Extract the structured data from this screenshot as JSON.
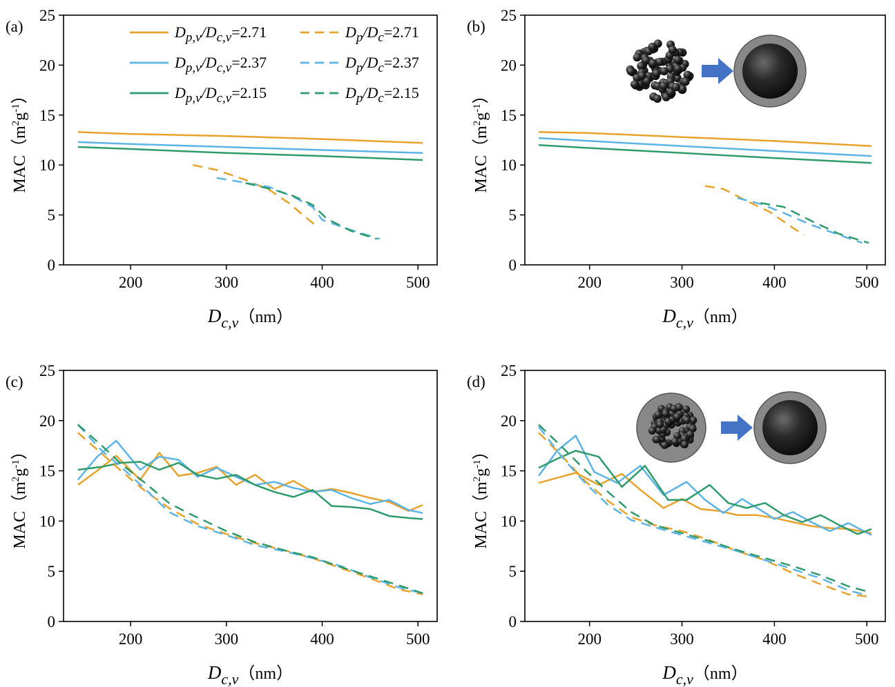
{
  "figure": {
    "xlabel_main": "D",
    "xlabel_sub": "c,v",
    "xlabel_unit": "（nm）",
    "ylabel_main": "MAC（m",
    "ylabel_sup1": "2",
    "ylabel_mid": "g",
    "ylabel_sup2": "-1",
    "ylabel_end": "）"
  },
  "legend": [
    {
      "main": "D",
      "sub1": "p,v",
      "mid": "/D",
      "sub2": "c,v",
      "value": "=2.71",
      "color": "#E8A22B",
      "dash": false
    },
    {
      "main": "D",
      "sub1": "p",
      "mid": "/D",
      "sub2": "c",
      "value": "=2.71",
      "color": "#E8A22B",
      "dash": true
    },
    {
      "main": "D",
      "sub1": "p,v",
      "mid": "/D",
      "sub2": "c,v",
      "value": "=2.37",
      "color": "#5BB4E5",
      "dash": false
    },
    {
      "main": "D",
      "sub1": "p",
      "mid": "/D",
      "sub2": "c",
      "value": "=2.37",
      "color": "#5BB4E5",
      "dash": true
    },
    {
      "main": "D",
      "sub1": "p,v",
      "mid": "/D",
      "sub2": "c,v",
      "value": "=2.15",
      "color": "#2E9B6B",
      "dash": false
    },
    {
      "main": "D",
      "sub1": "p",
      "mid": "/D",
      "sub2": "c",
      "value": "=2.15",
      "color": "#2E9B6B",
      "dash": true
    }
  ],
  "chart_data": [
    {
      "panel": "(a)",
      "type": "line",
      "xlim": [
        130,
        520
      ],
      "ylim": [
        0,
        25
      ],
      "xticks": [
        200,
        300,
        400,
        500
      ],
      "yticks": [
        0,
        5,
        10,
        15,
        20,
        25
      ],
      "grid": false,
      "legend_position": "top",
      "series": [
        {
          "color": "#E8A22B",
          "dash": false,
          "x": [
            145,
            200,
            300,
            400,
            505
          ],
          "y": [
            13.3,
            13.1,
            12.9,
            12.6,
            12.2
          ]
        },
        {
          "color": "#5BB4E5",
          "dash": false,
          "x": [
            145,
            200,
            300,
            400,
            505
          ],
          "y": [
            12.3,
            12.1,
            11.8,
            11.5,
            11.2
          ]
        },
        {
          "color": "#2E9B6B",
          "dash": false,
          "x": [
            145,
            200,
            300,
            400,
            505
          ],
          "y": [
            11.8,
            11.6,
            11.2,
            10.9,
            10.5
          ]
        },
        {
          "color": "#E8A22B",
          "dash": true,
          "x": [
            265,
            290,
            320,
            345,
            365,
            380,
            395
          ],
          "y": [
            10.0,
            9.5,
            8.5,
            7.5,
            6.2,
            5.0,
            3.8
          ]
        },
        {
          "color": "#5BB4E5",
          "dash": true,
          "x": [
            290,
            315,
            345,
            370,
            390,
            400,
            430,
            460
          ],
          "y": [
            8.7,
            8.3,
            7.8,
            6.8,
            5.8,
            4.5,
            3.5,
            2.6
          ]
        },
        {
          "color": "#2E9B6B",
          "dash": true,
          "x": [
            320,
            350,
            370,
            390,
            405,
            430,
            457
          ],
          "y": [
            8.2,
            7.5,
            6.9,
            6.0,
            4.6,
            3.4,
            2.6
          ]
        }
      ]
    },
    {
      "panel": "(b)",
      "type": "line",
      "xlim": [
        130,
        520
      ],
      "ylim": [
        0,
        25
      ],
      "xticks": [
        200,
        300,
        400,
        500
      ],
      "yticks": [
        0,
        5,
        10,
        15,
        20,
        25
      ],
      "grid": false,
      "series": [
        {
          "color": "#E8A22B",
          "dash": false,
          "x": [
            145,
            200,
            300,
            400,
            505
          ],
          "y": [
            13.3,
            13.2,
            12.8,
            12.4,
            11.9
          ]
        },
        {
          "color": "#5BB4E5",
          "dash": false,
          "x": [
            145,
            200,
            300,
            400,
            505
          ],
          "y": [
            12.7,
            12.4,
            11.9,
            11.4,
            10.9
          ]
        },
        {
          "color": "#2E9B6B",
          "dash": false,
          "x": [
            145,
            200,
            300,
            400,
            505
          ],
          "y": [
            12.0,
            11.7,
            11.2,
            10.7,
            10.2
          ]
        },
        {
          "color": "#E8A22B",
          "dash": true,
          "x": [
            325,
            345,
            370,
            395,
            420,
            432
          ],
          "y": [
            7.9,
            7.6,
            6.4,
            5.3,
            3.7,
            3.0
          ]
        },
        {
          "color": "#5BB4E5",
          "dash": true,
          "x": [
            360,
            385,
            410,
            440,
            470,
            495
          ],
          "y": [
            6.7,
            6.1,
            5.2,
            4.0,
            3.0,
            2.2
          ]
        },
        {
          "color": "#2E9B6B",
          "dash": true,
          "x": [
            385,
            410,
            440,
            470,
            502
          ],
          "y": [
            6.2,
            5.8,
            4.4,
            3.1,
            2.2
          ]
        }
      ]
    },
    {
      "panel": "(c)",
      "type": "line",
      "xlim": [
        130,
        520
      ],
      "ylim": [
        0,
        25
      ],
      "xticks": [
        200,
        300,
        400,
        500
      ],
      "yticks": [
        0,
        5,
        10,
        15,
        20,
        25
      ],
      "grid": false,
      "series": [
        {
          "color": "#E8A22B",
          "dash": false,
          "x": [
            145,
            165,
            185,
            210,
            230,
            250,
            270,
            290,
            310,
            330,
            350,
            370,
            390,
            410,
            430,
            450,
            470,
            490,
            505
          ],
          "y": [
            13.6,
            15.0,
            16.5,
            14.1,
            16.8,
            14.5,
            14.8,
            15.4,
            13.6,
            14.6,
            13.2,
            14.0,
            12.9,
            13.2,
            12.8,
            12.3,
            11.9,
            11.0,
            11.6
          ]
        },
        {
          "color": "#5BB4E5",
          "dash": false,
          "x": [
            145,
            165,
            185,
            210,
            230,
            250,
            270,
            290,
            310,
            330,
            350,
            370,
            390,
            410,
            430,
            450,
            470,
            490,
            505
          ],
          "y": [
            14.1,
            16.4,
            18.0,
            15.1,
            16.4,
            16.1,
            14.4,
            15.3,
            14.4,
            13.6,
            13.9,
            13.3,
            12.9,
            13.1,
            12.3,
            11.7,
            12.1,
            11.1,
            10.8
          ]
        },
        {
          "color": "#2E9B6B",
          "dash": false,
          "x": [
            145,
            170,
            190,
            210,
            230,
            250,
            270,
            290,
            310,
            330,
            350,
            370,
            390,
            410,
            430,
            450,
            470,
            490,
            505
          ],
          "y": [
            15.1,
            15.4,
            15.8,
            15.9,
            15.1,
            15.8,
            14.6,
            14.2,
            14.6,
            13.6,
            12.9,
            12.4,
            13.1,
            11.5,
            11.4,
            11.2,
            10.5,
            10.3,
            10.2
          ]
        },
        {
          "color": "#E8A22B",
          "dash": true,
          "x": [
            145,
            170,
            190,
            215,
            240,
            270,
            300,
            330,
            360,
            390,
            420,
            450,
            480,
            505
          ],
          "y": [
            18.8,
            16.7,
            15.0,
            13.0,
            11.3,
            9.7,
            8.7,
            7.8,
            7.1,
            6.3,
            5.3,
            4.3,
            3.2,
            2.7
          ]
        },
        {
          "color": "#5BB4E5",
          "dash": true,
          "x": [
            145,
            170,
            190,
            215,
            240,
            270,
            300,
            330,
            360,
            390,
            420,
            450,
            480,
            505
          ],
          "y": [
            19.6,
            17.0,
            15.4,
            13.2,
            10.9,
            9.5,
            8.6,
            7.6,
            7.0,
            6.3,
            5.5,
            4.4,
            3.4,
            2.8
          ]
        },
        {
          "color": "#2E9B6B",
          "dash": true,
          "x": [
            145,
            170,
            190,
            215,
            240,
            260,
            300,
            330,
            360,
            390,
            420,
            450,
            480,
            505
          ],
          "y": [
            19.6,
            17.5,
            15.7,
            13.8,
            11.8,
            10.8,
            9.0,
            7.9,
            7.1,
            6.4,
            5.4,
            4.5,
            3.6,
            2.8
          ]
        }
      ]
    },
    {
      "panel": "(d)",
      "type": "line",
      "xlim": [
        130,
        520
      ],
      "ylim": [
        0,
        25
      ],
      "xticks": [
        200,
        300,
        400,
        500
      ],
      "yticks": [
        0,
        5,
        10,
        15,
        20,
        25
      ],
      "grid": false,
      "series": [
        {
          "color": "#E8A22B",
          "dash": false,
          "x": [
            145,
            165,
            185,
            210,
            235,
            255,
            280,
            300,
            320,
            340,
            360,
            380,
            400,
            420,
            440,
            460,
            480,
            505
          ],
          "y": [
            13.8,
            14.3,
            14.8,
            13.6,
            14.7,
            13.1,
            11.3,
            12.2,
            11.2,
            11.0,
            10.6,
            10.6,
            10.3,
            9.9,
            9.5,
            9.3,
            9.2,
            8.8
          ]
        },
        {
          "color": "#5BB4E5",
          "dash": false,
          "x": [
            145,
            165,
            185,
            205,
            230,
            255,
            280,
            305,
            325,
            345,
            365,
            385,
            400,
            420,
            440,
            460,
            480,
            505
          ],
          "y": [
            14.5,
            17.0,
            18.5,
            14.9,
            13.8,
            15.5,
            12.6,
            13.9,
            12.1,
            10.8,
            12.2,
            11.1,
            10.2,
            10.9,
            9.9,
            9.0,
            9.8,
            8.6
          ]
        },
        {
          "color": "#2E9B6B",
          "dash": false,
          "x": [
            145,
            165,
            185,
            210,
            235,
            260,
            285,
            305,
            330,
            350,
            370,
            390,
            410,
            430,
            450,
            470,
            490,
            505
          ],
          "y": [
            15.3,
            16.2,
            17.0,
            16.4,
            13.4,
            15.5,
            12.1,
            12.1,
            13.6,
            11.8,
            11.3,
            11.8,
            10.6,
            9.9,
            10.6,
            9.6,
            8.7,
            9.2
          ]
        },
        {
          "color": "#E8A22B",
          "dash": true,
          "x": [
            145,
            170,
            195,
            220,
            245,
            270,
            300,
            330,
            360,
            390,
            420,
            450,
            480,
            500
          ],
          "y": [
            18.8,
            16.5,
            14.0,
            12.0,
            10.4,
            9.6,
            9.0,
            8.1,
            7.0,
            6.1,
            4.8,
            3.7,
            2.7,
            2.5
          ]
        },
        {
          "color": "#5BB4E5",
          "dash": true,
          "x": [
            145,
            170,
            195,
            220,
            245,
            270,
            300,
            330,
            360,
            390,
            420,
            450,
            480,
            500
          ],
          "y": [
            19.4,
            16.4,
            13.8,
            11.6,
            10.1,
            9.4,
            8.6,
            7.8,
            7.0,
            6.1,
            5.2,
            4.3,
            3.1,
            2.6
          ]
        },
        {
          "color": "#2E9B6B",
          "dash": true,
          "x": [
            145,
            170,
            195,
            220,
            245,
            270,
            300,
            330,
            360,
            390,
            420,
            450,
            480,
            500
          ],
          "y": [
            19.6,
            17.4,
            15.1,
            12.9,
            10.9,
            9.6,
            8.8,
            8.0,
            7.1,
            6.3,
            5.5,
            4.6,
            3.5,
            3.0
          ]
        }
      ]
    }
  ]
}
